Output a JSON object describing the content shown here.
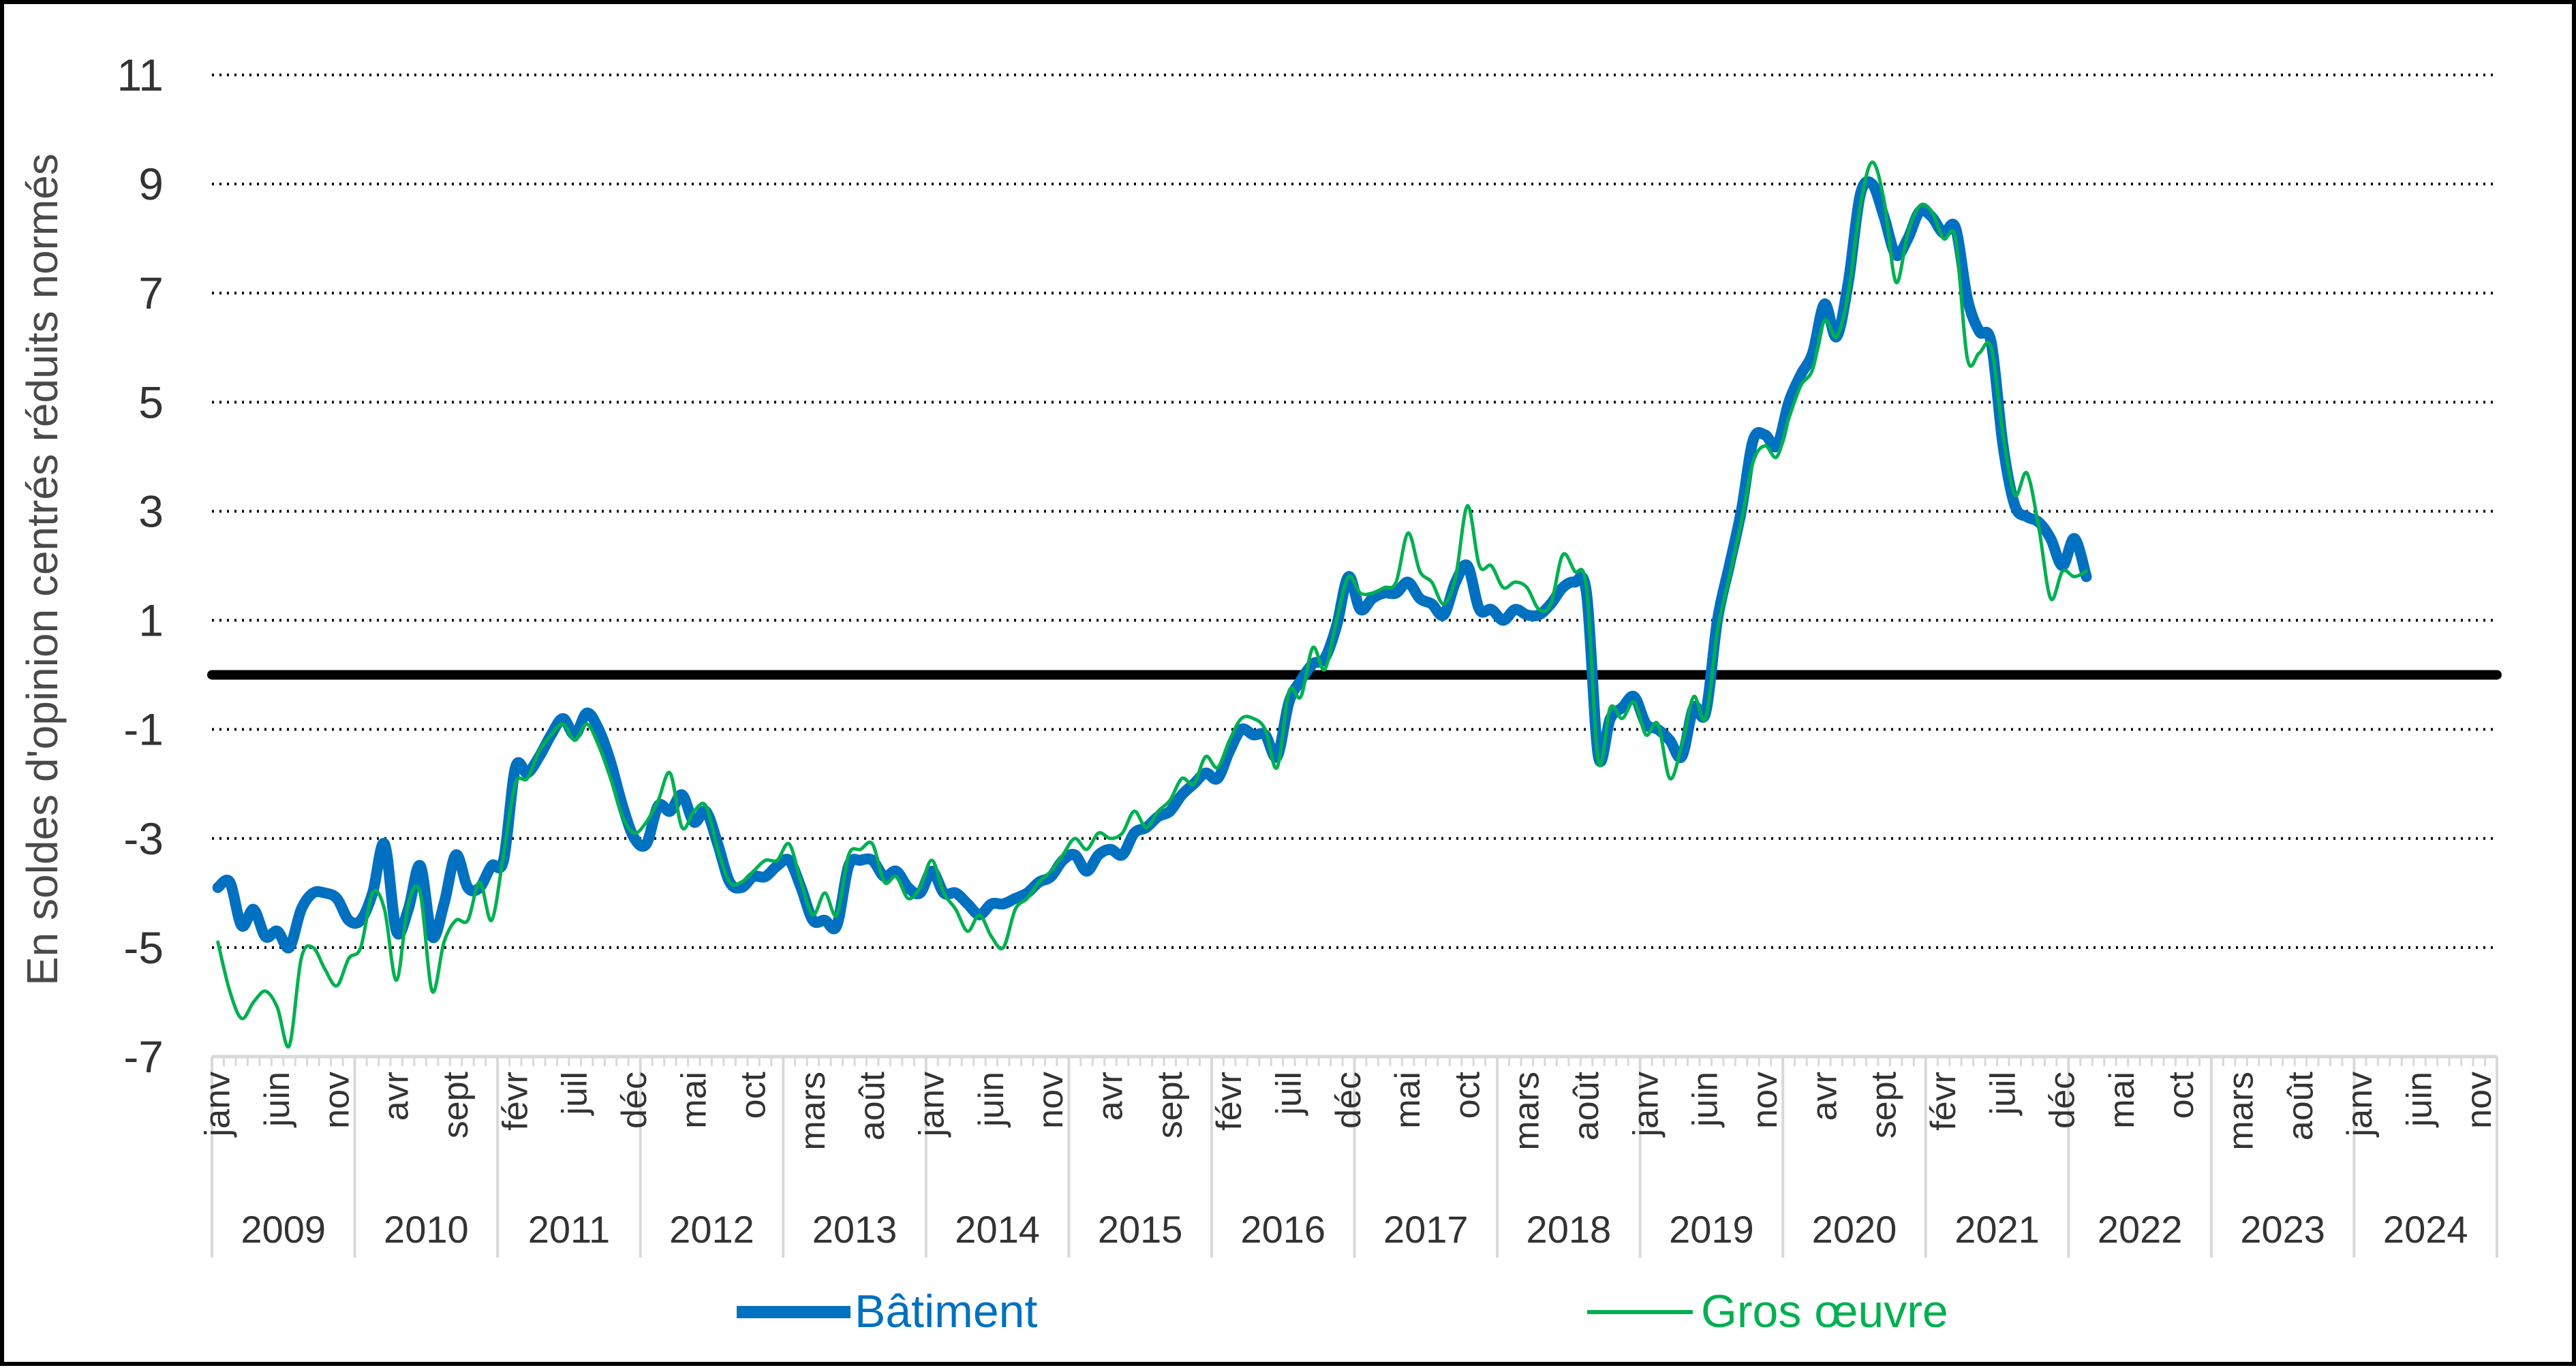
{
  "chart_data": {
    "type": "line",
    "title": "",
    "xlabel": "",
    "ylabel": "En soldes d'opinion centrés réduits normés",
    "ylim": [
      -7,
      11
    ],
    "yticks": [
      11,
      9,
      7,
      5,
      3,
      1,
      -1,
      -3,
      -5,
      -7
    ],
    "grid": true,
    "legend_position": "bottom",
    "reference_line": 0,
    "years": [
      "2009",
      "2010",
      "2011",
      "2012",
      "2013",
      "2014",
      "2015",
      "2016",
      "2017",
      "2018",
      "2019",
      "2020",
      "2021",
      "2022",
      "2023",
      "2024"
    ],
    "month_labels": [
      "janv",
      "juin",
      "nov",
      "avr",
      "sept",
      "févr",
      "juil",
      "déc",
      "mai",
      "oct",
      "mars",
      "août",
      "janv",
      "juin",
      "nov",
      "avr",
      "sept",
      "févr",
      "juil",
      "déc",
      "mai",
      "oct",
      "mars",
      "août",
      "janv",
      "juin",
      "nov",
      "avr",
      "sept",
      "févr",
      "juil",
      "déc",
      "mai",
      "oct",
      "mars",
      "août",
      "janv",
      "juin",
      "nov"
    ],
    "x_start": "2009-01",
    "colors": {
      "batiment": "#0070C0",
      "gros_oeuvre": "#00B050",
      "zero_line": "#000000",
      "grid": "#000000"
    },
    "series": [
      {
        "name": "Bâtiment",
        "values": [
          -3.9,
          -3.8,
          -4.6,
          -4.3,
          -4.8,
          -4.7,
          -5.0,
          -4.3,
          -4.0,
          -4.0,
          -4.1,
          -4.5,
          -4.5,
          -4.0,
          -3.1,
          -4.7,
          -4.3,
          -3.5,
          -4.8,
          -4.2,
          -3.3,
          -3.9,
          -3.9,
          -3.5,
          -3.4,
          -1.7,
          -1.8,
          -1.5,
          -1.1,
          -0.8,
          -1.1,
          -0.7,
          -1.0,
          -1.6,
          -2.4,
          -3.0,
          -3.1,
          -2.4,
          -2.5,
          -2.2,
          -2.7,
          -2.5,
          -3.1,
          -3.8,
          -3.9,
          -3.7,
          -3.7,
          -3.5,
          -3.4,
          -3.9,
          -4.5,
          -4.5,
          -4.6,
          -3.5,
          -3.4,
          -3.4,
          -3.7,
          -3.6,
          -3.9,
          -4.0,
          -3.6,
          -4.0,
          -4.0,
          -4.2,
          -4.4,
          -4.2,
          -4.2,
          -4.1,
          -4.0,
          -3.8,
          -3.7,
          -3.4,
          -3.3,
          -3.6,
          -3.3,
          -3.2,
          -3.3,
          -2.9,
          -2.8,
          -2.6,
          -2.5,
          -2.2,
          -2.0,
          -1.8,
          -1.9,
          -1.4,
          -1.0,
          -1.1,
          -1.1,
          -1.5,
          -0.5,
          -0.1,
          0.2,
          0.3,
          0.9,
          1.8,
          1.2,
          1.4,
          1.5,
          1.5,
          1.7,
          1.4,
          1.3,
          1.1,
          1.7,
          2.0,
          1.2,
          1.2,
          1.0,
          1.2,
          1.1,
          1.1,
          1.3,
          1.6,
          1.7,
          1.5,
          -1.5,
          -0.8,
          -0.6,
          -0.4,
          -0.9,
          -1.0,
          -1.2,
          -1.5,
          -0.6,
          -0.7,
          1.0,
          2.0,
          3.0,
          4.3,
          4.4,
          4.2,
          5.0,
          5.5,
          5.9,
          6.8,
          6.2,
          7.2,
          8.8,
          9.0,
          8.4,
          7.7,
          8.0,
          8.5,
          8.4,
          8.1,
          8.2,
          6.9,
          6.3,
          6.1,
          4.2,
          3.1,
          2.9,
          2.8,
          2.5,
          2.0,
          2.5,
          1.8
        ]
      },
      {
        "name": "Gros œuvre",
        "values": [
          -4.9,
          -5.8,
          -6.3,
          -6.0,
          -5.8,
          -6.1,
          -6.8,
          -5.2,
          -5.0,
          -5.4,
          -5.7,
          -5.2,
          -5.0,
          -4.0,
          -4.3,
          -5.6,
          -4.2,
          -4.0,
          -5.8,
          -4.9,
          -4.5,
          -4.5,
          -3.8,
          -4.5,
          -3.3,
          -2.0,
          -1.9,
          -1.4,
          -1.1,
          -0.9,
          -1.2,
          -0.9,
          -1.3,
          -1.9,
          -2.6,
          -2.9,
          -2.7,
          -2.3,
          -1.8,
          -2.8,
          -2.5,
          -2.4,
          -3.2,
          -3.8,
          -3.8,
          -3.6,
          -3.4,
          -3.4,
          -3.1,
          -3.8,
          -4.4,
          -4.0,
          -4.4,
          -3.3,
          -3.2,
          -3.1,
          -3.8,
          -3.7,
          -4.1,
          -3.9,
          -3.4,
          -4.0,
          -4.3,
          -4.7,
          -4.4,
          -4.8,
          -5.0,
          -4.3,
          -4.1,
          -3.8,
          -3.6,
          -3.3,
          -3.0,
          -3.2,
          -2.9,
          -3.0,
          -2.9,
          -2.5,
          -2.8,
          -2.5,
          -2.3,
          -1.9,
          -2.0,
          -1.5,
          -1.7,
          -1.2,
          -0.8,
          -0.8,
          -1.0,
          -1.7,
          -0.3,
          -0.4,
          0.5,
          0.1,
          1.0,
          1.8,
          1.5,
          1.5,
          1.6,
          1.7,
          2.6,
          1.9,
          1.7,
          1.3,
          1.8,
          3.1,
          2.0,
          2.0,
          1.6,
          1.7,
          1.6,
          1.2,
          1.3,
          2.2,
          1.9,
          1.6,
          -1.6,
          -0.6,
          -0.8,
          -0.5,
          -1.1,
          -0.9,
          -1.9,
          -1.3,
          -0.4,
          -0.8,
          0.8,
          1.8,
          2.8,
          3.9,
          4.2,
          4.0,
          4.7,
          5.3,
          5.6,
          6.5,
          6.2,
          7.0,
          8.6,
          9.4,
          8.7,
          7.2,
          8.1,
          8.6,
          8.5,
          8.0,
          8.0,
          5.8,
          5.9,
          6.0,
          4.4,
          3.3,
          3.7,
          2.7,
          1.4,
          1.9,
          1.8,
          1.9
        ]
      }
    ]
  }
}
